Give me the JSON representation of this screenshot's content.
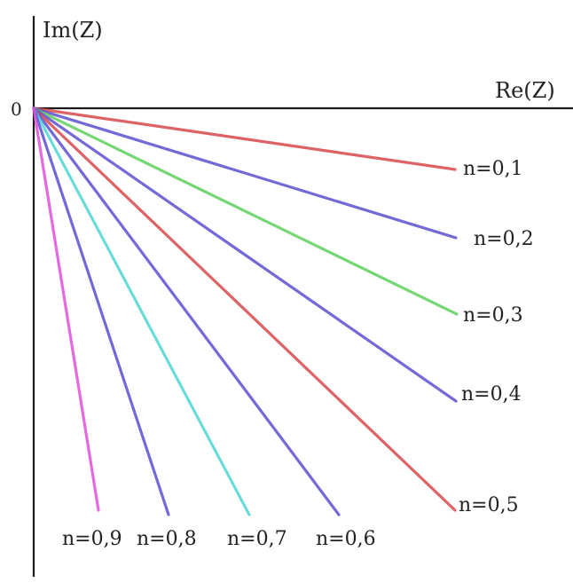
{
  "chart_data": {
    "type": "line",
    "title": "",
    "xlabel": "Re(Z)",
    "ylabel": "Im(Z)",
    "origin_label": "0",
    "series": [
      {
        "name": "n=0,1",
        "n": 0.1,
        "color": "#d9464a"
      },
      {
        "name": "n=0,2",
        "n": 0.2,
        "color": "#5b4fd0"
      },
      {
        "name": "n=0,3",
        "n": 0.3,
        "color": "#5fd05f"
      },
      {
        "name": "n=0,4",
        "n": 0.4,
        "color": "#5b4fd0"
      },
      {
        "name": "n=0,5",
        "n": 0.5,
        "color": "#d9464a"
      },
      {
        "name": "n=0,6",
        "n": 0.6,
        "color": "#5b4fd0"
      },
      {
        "name": "n=0,7",
        "n": 0.7,
        "color": "#4fd6d4"
      },
      {
        "name": "n=0,8",
        "n": 0.8,
        "color": "#5b4fd0"
      },
      {
        "name": "n=0,9",
        "n": 0.9,
        "color": "#e050dc"
      }
    ],
    "grid": false,
    "legend": "none"
  }
}
